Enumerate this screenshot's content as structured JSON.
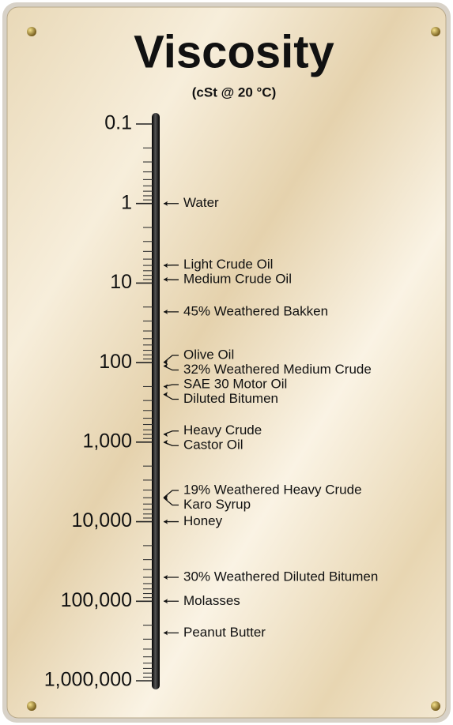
{
  "chart_data": {
    "type": "scale",
    "title": "Viscosity",
    "subtitle": "(cSt @ 20 °C)",
    "log_scale": true,
    "minor_ticks": true,
    "ylim": [
      0.1,
      1000000
    ],
    "yticks": [
      0.1,
      1,
      10,
      100,
      {
        "value": 1000,
        "label": "1,000"
      },
      {
        "value": 10000,
        "label": "10,000"
      },
      {
        "value": 100000,
        "label": "100,000"
      },
      {
        "value": 1000000,
        "label": "1,000,000"
      }
    ],
    "categories": [
      "Water",
      "Light Crude Oil",
      "Medium Crude Oil",
      "45% Weathered Bakken",
      "Olive Oil",
      "32% Weathered Medium Crude",
      "SAE 30 Motor Oil",
      "Diluted Bitumen",
      "Heavy Crude",
      "Castor Oil",
      "19% Weathered Heavy Crude",
      "Karo Syrup",
      "Honey",
      "30% Weathered Diluted Bitumen",
      "Molasses",
      "Peanut Butter"
    ],
    "values": [
      1,
      6,
      9,
      23,
      100,
      110,
      200,
      250,
      800,
      1000,
      5000,
      5000,
      10000,
      50000,
      100000,
      250000
    ],
    "color": "#111111"
  }
}
